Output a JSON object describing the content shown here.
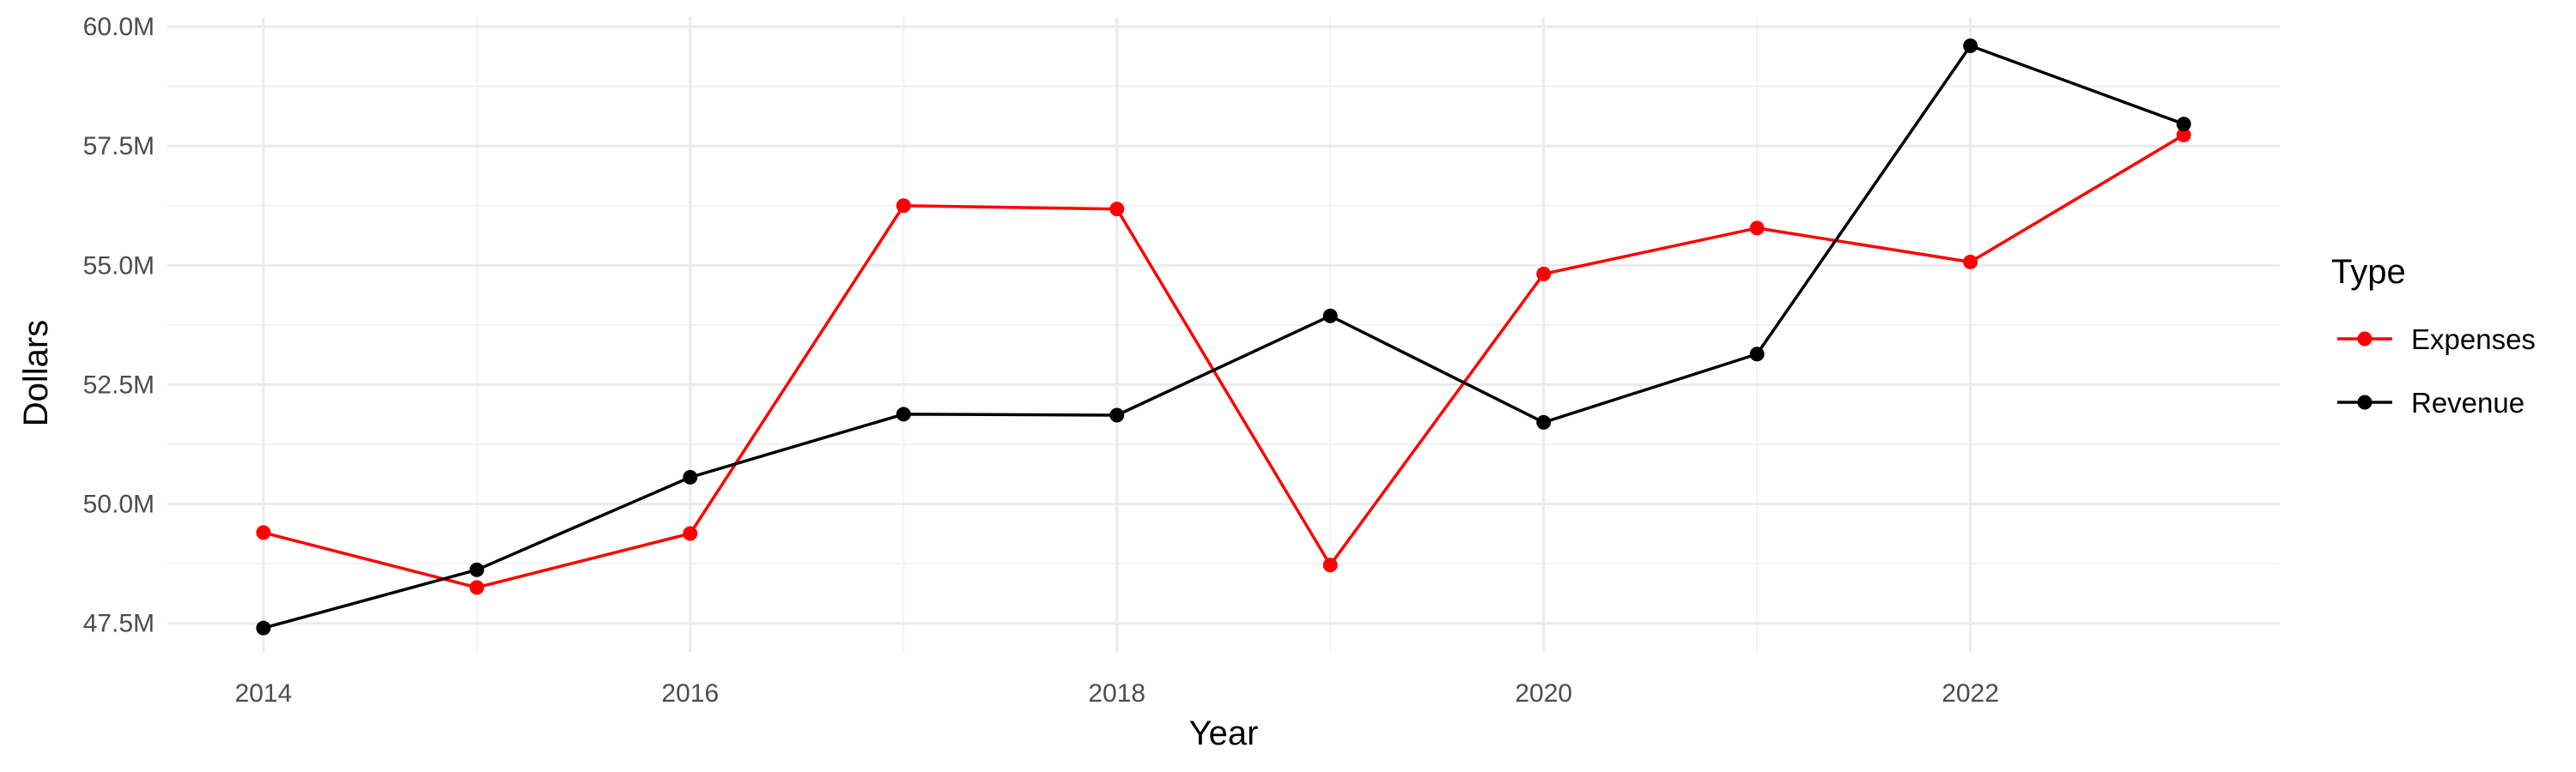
{
  "chart_data": {
    "type": "line",
    "xlabel": "Year",
    "ylabel": "Dollars",
    "x": [
      2014,
      2015,
      2016,
      2017,
      2018,
      2019,
      2020,
      2021,
      2022,
      2023
    ],
    "xlim": [
      2013.55,
      2023.45
    ],
    "ylim": [
      46.9,
      60.2
    ],
    "x_ticks": [
      2014,
      2016,
      2018,
      2020,
      2022
    ],
    "x_tick_labels": [
      "2014",
      "2016",
      "2018",
      "2020",
      "2022"
    ],
    "y_ticks": [
      47.5,
      50.0,
      52.5,
      55.0,
      57.5,
      60.0
    ],
    "y_tick_labels": [
      "47.5M",
      "50.0M",
      "52.5M",
      "55.0M",
      "57.5M",
      "60.0M"
    ],
    "grid": true,
    "legend": {
      "title": "Type",
      "position": "right"
    },
    "series": [
      {
        "name": "Expenses",
        "color": "#ff0000",
        "values": [
          49.4,
          48.25,
          49.38,
          56.25,
          56.18,
          48.72,
          54.82,
          55.78,
          55.07,
          57.73
        ]
      },
      {
        "name": "Revenue",
        "color": "#000000",
        "values": [
          47.4,
          48.62,
          50.56,
          51.88,
          51.86,
          53.94,
          51.71,
          53.14,
          59.6,
          57.96
        ]
      }
    ]
  }
}
